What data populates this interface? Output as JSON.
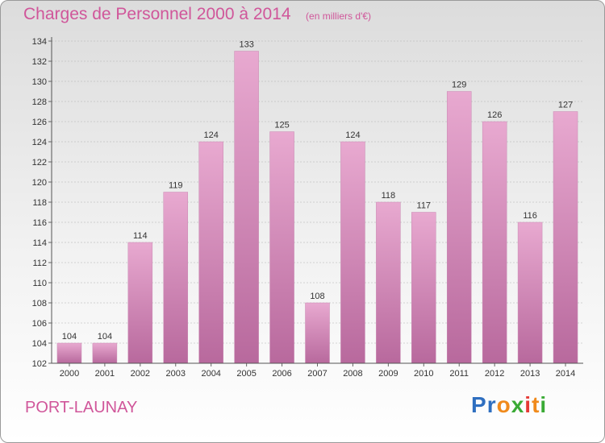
{
  "title": "Charges de Personnel 2000 à 2014",
  "unit_note": "(en milliers d'€)",
  "commune": "PORT-LAUNAY",
  "brand": {
    "letters": [
      {
        "char": "P",
        "color": "#2f6fc0"
      },
      {
        "char": "r",
        "color": "#2f6fc0"
      },
      {
        "char": "o",
        "color": "#f08a1c"
      },
      {
        "char": "x",
        "color": "#3aaa35"
      },
      {
        "char": "i",
        "color": "#e53935"
      },
      {
        "char": "t",
        "color": "#f08a1c"
      },
      {
        "char": "i",
        "color": "#3aaa35"
      }
    ]
  },
  "colors": {
    "title": "#d0569a",
    "bar_top": "#e8a9d0",
    "bar_bottom": "#b8699d",
    "grid": "#b0b0b0"
  },
  "chart_data": {
    "type": "bar",
    "title": "Charges de Personnel 2000 à 2014",
    "subtitle": "(en milliers d'€)",
    "categories": [
      "2000",
      "2001",
      "2002",
      "2003",
      "2004",
      "2005",
      "2006",
      "2007",
      "2008",
      "2009",
      "2010",
      "2011",
      "2012",
      "2013",
      "2014"
    ],
    "values": [
      104,
      104,
      114,
      119,
      124,
      133,
      125,
      108,
      124,
      118,
      117,
      129,
      126,
      116,
      127
    ],
    "ylim": [
      102,
      134
    ],
    "yticks": [
      102,
      104,
      106,
      108,
      110,
      112,
      114,
      116,
      118,
      120,
      122,
      124,
      126,
      128,
      130,
      132,
      134
    ],
    "grid": true,
    "data_labels": true
  }
}
